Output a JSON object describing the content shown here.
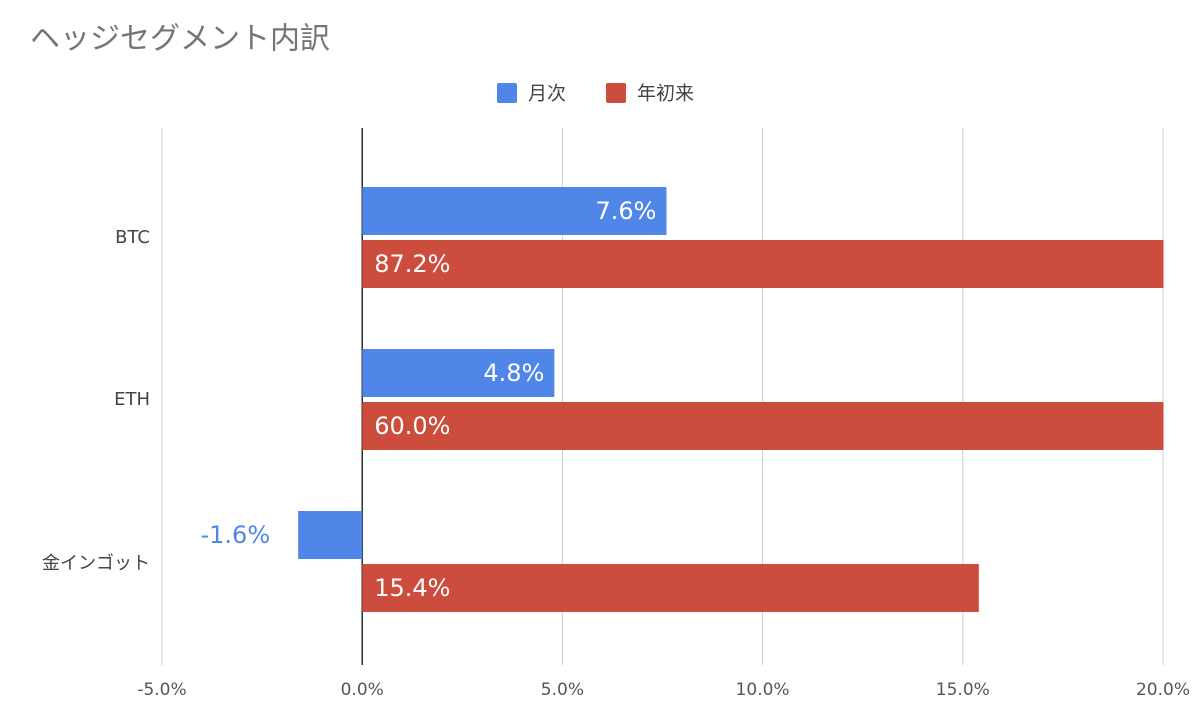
{
  "chart_data": {
    "type": "hbar",
    "title": "ヘッジセグメント内訳",
    "categories": [
      "BTC",
      "ETH",
      "金インゴット"
    ],
    "series": [
      {
        "name": "月次",
        "color": "#4f86e8",
        "values": [
          7.6,
          4.8,
          -1.6
        ],
        "value_labels": [
          "7.6%",
          "4.8%",
          "-1.6%"
        ]
      },
      {
        "name": "年初来",
        "color": "#cc4c3e",
        "values": [
          87.2,
          60.0,
          15.4
        ],
        "value_labels": [
          "87.2%",
          "60.0%",
          "15.4%"
        ]
      }
    ],
    "xlim": [
      -5,
      20
    ],
    "xticks": [
      {
        "value": -5,
        "label": "-5.0%"
      },
      {
        "value": 0,
        "label": "0.0%"
      },
      {
        "value": 5,
        "label": "5.0%"
      },
      {
        "value": 10,
        "label": "10.0%"
      },
      {
        "value": 15,
        "label": "15.0%"
      },
      {
        "value": 20,
        "label": "20.0%"
      }
    ],
    "grid": true,
    "legend": "top"
  }
}
